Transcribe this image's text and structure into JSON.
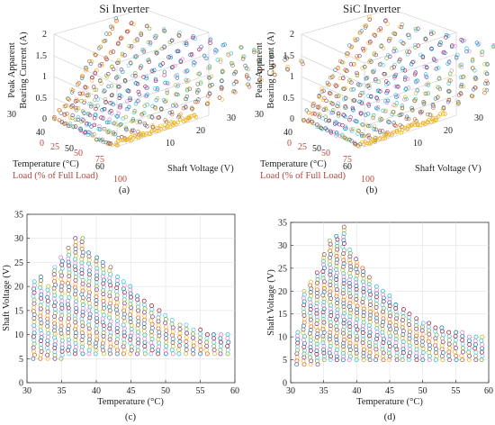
{
  "panels": [
    {
      "id": "a",
      "title": "Si Inverter",
      "caption": "(a)",
      "type": "scatter3d",
      "zlabel_line1": "Peak Apparent",
      "zlabel_line2": "Bearing Current (A)",
      "xlabel": "Temperature (°C)",
      "load_label": "Load (% of Full Load)",
      "ylabel": "Shaft Voltage (V)",
      "z_ticks": [
        "0",
        "0.5",
        "1",
        "1.5",
        "2"
      ],
      "temp_ticks": [
        "30",
        "40",
        "50",
        "60"
      ],
      "load_ticks": [
        "0",
        "25",
        "50",
        "75",
        "100"
      ],
      "shaft_ticks": [
        "10",
        "20",
        "30"
      ]
    },
    {
      "id": "b",
      "title": "SiC Inverter",
      "caption": "(b)",
      "type": "scatter3d",
      "zlabel_line1": "Peak Apparent",
      "zlabel_line2": "Bearing Current (A)",
      "xlabel": "Temperature (°C)",
      "load_label": "Load (% of Full Load)",
      "ylabel": "Shaft Voltage (V)",
      "z_ticks": [
        "0",
        "0.5",
        "1",
        "1.5",
        "2"
      ],
      "temp_ticks": [
        "30",
        "40",
        "50",
        "60"
      ],
      "load_ticks": [
        "0",
        "25",
        "50",
        "75",
        "100"
      ],
      "shaft_ticks": [
        "10",
        "20",
        "30"
      ]
    }
  ],
  "chart_data": [
    {
      "type": "scatter",
      "panel": "c",
      "caption": "(c)",
      "xlabel": "Temperature (°C)",
      "ylabel": "Shaft Voltage (V)",
      "xlim": [
        30,
        60
      ],
      "ylim": [
        0,
        35
      ],
      "xticks": [
        30,
        35,
        40,
        45,
        50,
        55,
        60
      ],
      "yticks": [
        0,
        5,
        10,
        15,
        20,
        25,
        30,
        35
      ],
      "columns": [
        {
          "x": 31,
          "ymin": 5,
          "ymax": 21
        },
        {
          "x": 32,
          "ymin": 5,
          "ymax": 22
        },
        {
          "x": 33,
          "ymin": 5,
          "ymax": 20
        },
        {
          "x": 34,
          "ymin": 5,
          "ymax": 24
        },
        {
          "x": 35,
          "ymin": 5,
          "ymax": 26
        },
        {
          "x": 36,
          "ymin": 6,
          "ymax": 28
        },
        {
          "x": 37,
          "ymin": 6,
          "ymax": 30
        },
        {
          "x": 38,
          "ymin": 6,
          "ymax": 30
        },
        {
          "x": 39,
          "ymin": 6,
          "ymax": 27
        },
        {
          "x": 40,
          "ymin": 6,
          "ymax": 26
        },
        {
          "x": 41,
          "ymin": 6,
          "ymax": 25
        },
        {
          "x": 42,
          "ymin": 6,
          "ymax": 24
        },
        {
          "x": 43,
          "ymin": 6,
          "ymax": 22
        },
        {
          "x": 44,
          "ymin": 6,
          "ymax": 21
        },
        {
          "x": 45,
          "ymin": 6,
          "ymax": 20
        },
        {
          "x": 46,
          "ymin": 6,
          "ymax": 18
        },
        {
          "x": 47,
          "ymin": 6,
          "ymax": 17
        },
        {
          "x": 48,
          "ymin": 6,
          "ymax": 16
        },
        {
          "x": 49,
          "ymin": 6,
          "ymax": 15
        },
        {
          "x": 50,
          "ymin": 6,
          "ymax": 14
        },
        {
          "x": 51,
          "ymin": 6,
          "ymax": 13
        },
        {
          "x": 52,
          "ymin": 6,
          "ymax": 12
        },
        {
          "x": 53,
          "ymin": 6,
          "ymax": 12
        },
        {
          "x": 54,
          "ymin": 6,
          "ymax": 11
        },
        {
          "x": 55,
          "ymin": 6,
          "ymax": 11
        },
        {
          "x": 56,
          "ymin": 6,
          "ymax": 10
        },
        {
          "x": 57,
          "ymin": 6,
          "ymax": 10
        },
        {
          "x": 58,
          "ymin": 6,
          "ymax": 10
        },
        {
          "x": 59,
          "ymin": 6,
          "ymax": 10
        }
      ]
    },
    {
      "type": "scatter",
      "panel": "d",
      "caption": "(d)",
      "xlabel": "Temperature (°C)",
      "ylabel": "Shaft Voltage (V)",
      "xlim": [
        30,
        60
      ],
      "ylim": [
        0,
        35
      ],
      "xticks": [
        30,
        35,
        40,
        45,
        50,
        55,
        60
      ],
      "yticks": [
        0,
        5,
        10,
        15,
        20,
        25,
        30,
        35
      ],
      "columns": [
        {
          "x": 31,
          "ymin": 4,
          "ymax": 11
        },
        {
          "x": 32,
          "ymin": 4,
          "ymax": 20
        },
        {
          "x": 33,
          "ymin": 4,
          "ymax": 22
        },
        {
          "x": 34,
          "ymin": 4,
          "ymax": 24
        },
        {
          "x": 35,
          "ymin": 5,
          "ymax": 28
        },
        {
          "x": 36,
          "ymin": 5,
          "ymax": 31
        },
        {
          "x": 37,
          "ymin": 5,
          "ymax": 32
        },
        {
          "x": 38,
          "ymin": 5,
          "ymax": 34
        },
        {
          "x": 39,
          "ymin": 5,
          "ymax": 29
        },
        {
          "x": 40,
          "ymin": 5,
          "ymax": 27
        },
        {
          "x": 41,
          "ymin": 5,
          "ymax": 25
        },
        {
          "x": 42,
          "ymin": 5,
          "ymax": 23
        },
        {
          "x": 43,
          "ymin": 5,
          "ymax": 21
        },
        {
          "x": 44,
          "ymin": 5,
          "ymax": 20
        },
        {
          "x": 45,
          "ymin": 5,
          "ymax": 19
        },
        {
          "x": 46,
          "ymin": 5,
          "ymax": 17
        },
        {
          "x": 47,
          "ymin": 5,
          "ymax": 16
        },
        {
          "x": 48,
          "ymin": 5,
          "ymax": 15
        },
        {
          "x": 49,
          "ymin": 5,
          "ymax": 14
        },
        {
          "x": 50,
          "ymin": 5,
          "ymax": 13
        },
        {
          "x": 51,
          "ymin": 5,
          "ymax": 13
        },
        {
          "x": 52,
          "ymin": 5,
          "ymax": 12
        },
        {
          "x": 53,
          "ymin": 5,
          "ymax": 12
        },
        {
          "x": 54,
          "ymin": 5,
          "ymax": 11
        },
        {
          "x": 55,
          "ymin": 5,
          "ymax": 11
        },
        {
          "x": 56,
          "ymin": 5,
          "ymax": 11
        },
        {
          "x": 57,
          "ymin": 5,
          "ymax": 10
        },
        {
          "x": 58,
          "ymin": 5,
          "ymax": 10
        },
        {
          "x": 59,
          "ymin": 5,
          "ymax": 10
        }
      ]
    }
  ],
  "colors": [
    "#1f77b4",
    "#d95319",
    "#edb120",
    "#7e2f8e",
    "#77ac30",
    "#4dbeee",
    "#a2142f",
    "#0072bd",
    "#e377c2",
    "#17becf",
    "#bcbd22",
    "#8c564b"
  ]
}
